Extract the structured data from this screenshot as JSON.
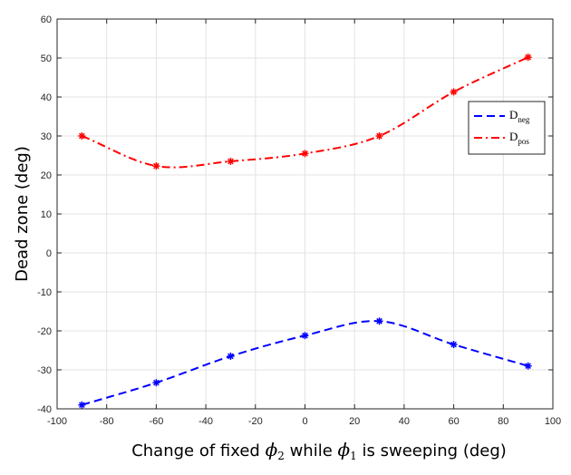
{
  "chart_data": {
    "type": "line",
    "xlabel": {
      "prefix": "Change of  fixed ",
      "sym1": "ϕ",
      "sub1": "2",
      "middle": "  while ",
      "sym2": "ϕ",
      "sub2": "1",
      "suffix": " is sweeping (deg)"
    },
    "ylabel": "Dead zone (deg)",
    "xlim": [
      -100,
      100
    ],
    "ylim": [
      -40,
      60
    ],
    "xticks": [
      -100,
      -80,
      -60,
      -40,
      -20,
      0,
      20,
      40,
      60,
      80,
      100
    ],
    "yticks": [
      -40,
      -30,
      -20,
      -10,
      0,
      10,
      20,
      30,
      40,
      50,
      60
    ],
    "grid": true,
    "legend": {
      "placement": "top-right"
    },
    "series": [
      {
        "name": "D",
        "subscript": "neg",
        "color": "#0000ff",
        "line_style": "dashed",
        "marker": "asterisk",
        "x": [
          -90,
          -60,
          -30,
          0,
          30,
          60,
          90
        ],
        "y": [
          -39,
          -33.3,
          -26.5,
          -21.2,
          -17.5,
          -23.5,
          -29
        ]
      },
      {
        "name": "D",
        "subscript": "pos",
        "color": "#ff0000",
        "line_style": "dash-dot",
        "marker": "asterisk",
        "x": [
          -90,
          -60,
          -30,
          0,
          30,
          60,
          90
        ],
        "y": [
          30,
          22.3,
          23.5,
          25.5,
          30,
          41.3,
          50.2
        ]
      }
    ]
  }
}
